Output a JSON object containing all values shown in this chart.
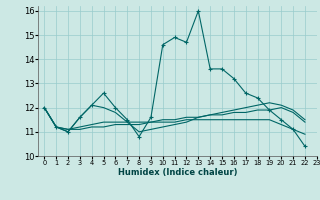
{
  "title": "",
  "xlabel": "Humidex (Indice chaleur)",
  "ylabel": "",
  "background_color": "#cce8e4",
  "grid_color": "#99cccc",
  "line_color": "#006666",
  "xlim": [
    -0.5,
    23
  ],
  "ylim": [
    10,
    16.2
  ],
  "yticks": [
    10,
    11,
    12,
    13,
    14,
    15,
    16
  ],
  "xticks": [
    0,
    1,
    2,
    3,
    4,
    5,
    6,
    7,
    8,
    9,
    10,
    11,
    12,
    13,
    14,
    15,
    16,
    17,
    18,
    19,
    20,
    21,
    22,
    23
  ],
  "series": [
    [
      12.0,
      11.2,
      11.0,
      11.6,
      12.1,
      12.6,
      12.0,
      11.5,
      10.8,
      11.6,
      14.6,
      14.9,
      14.7,
      16.0,
      13.6,
      13.6,
      13.2,
      12.6,
      12.4,
      11.9,
      11.5,
      11.1,
      10.4
    ],
    [
      12.0,
      11.2,
      11.0,
      11.6,
      12.1,
      12.0,
      11.8,
      11.4,
      11.0,
      11.1,
      11.2,
      11.3,
      11.4,
      11.6,
      11.7,
      11.8,
      11.9,
      12.0,
      12.1,
      12.2,
      12.1,
      11.9,
      11.5
    ],
    [
      12.0,
      11.2,
      11.1,
      11.2,
      11.3,
      11.4,
      11.4,
      11.4,
      11.4,
      11.4,
      11.5,
      11.5,
      11.6,
      11.6,
      11.7,
      11.7,
      11.8,
      11.8,
      11.9,
      11.9,
      12.0,
      11.8,
      11.4
    ],
    [
      12.0,
      11.2,
      11.1,
      11.1,
      11.2,
      11.2,
      11.3,
      11.3,
      11.3,
      11.4,
      11.4,
      11.4,
      11.5,
      11.5,
      11.5,
      11.5,
      11.5,
      11.5,
      11.5,
      11.5,
      11.3,
      11.1,
      10.9
    ]
  ],
  "x_values": [
    0,
    1,
    2,
    3,
    4,
    5,
    6,
    7,
    8,
    9,
    10,
    11,
    12,
    13,
    14,
    15,
    16,
    17,
    18,
    19,
    20,
    21,
    22
  ]
}
